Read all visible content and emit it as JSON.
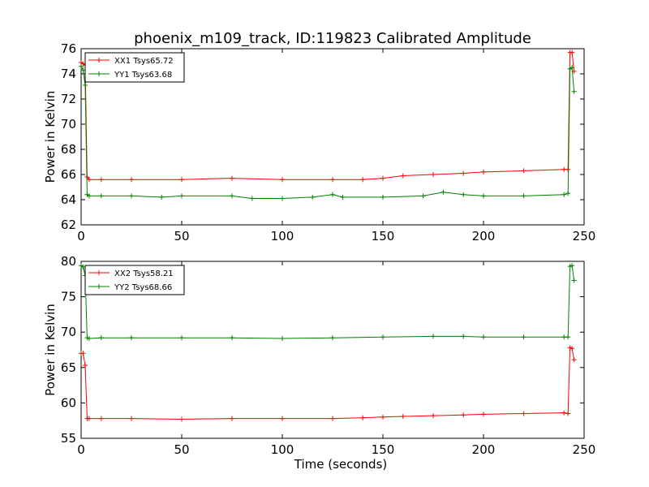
{
  "title": "phoenix_m109_track, ID:119823 Calibrated Amplitude",
  "colors": {
    "red": "#ff0000",
    "green": "#008000"
  },
  "chart_data": [
    {
      "type": "line",
      "xlabel": "",
      "ylabel": "Power in Kelvin",
      "xlim": [
        0,
        250
      ],
      "ylim": [
        62,
        76
      ],
      "xticks": [
        0,
        50,
        100,
        150,
        200,
        250
      ],
      "yticks": [
        62,
        64,
        66,
        68,
        70,
        72,
        74,
        76
      ],
      "legend_position": "top-left",
      "series": [
        {
          "name": "XX1 Tsys65.72",
          "color": "#ff0000",
          "x": [
            0,
            1,
            2,
            3,
            4,
            10,
            25,
            50,
            75,
            100,
            125,
            140,
            150,
            160,
            175,
            190,
            200,
            220,
            240,
            242,
            243,
            244,
            245
          ],
          "y": [
            74.9,
            74.8,
            74.7,
            65.8,
            65.6,
            65.6,
            65.6,
            65.6,
            65.7,
            65.6,
            65.6,
            65.6,
            65.7,
            65.9,
            66.0,
            66.1,
            66.2,
            66.3,
            66.4,
            66.4,
            75.7,
            75.7,
            74.2
          ]
        },
        {
          "name": "YY1 Tsys63.68",
          "color": "#008000",
          "x": [
            0,
            1,
            2,
            3,
            4,
            10,
            25,
            40,
            50,
            75,
            85,
            100,
            115,
            125,
            130,
            150,
            170,
            180,
            190,
            200,
            220,
            240,
            242,
            243,
            244,
            245
          ],
          "y": [
            74.6,
            74.3,
            73.1,
            64.4,
            64.3,
            64.3,
            64.3,
            64.2,
            64.3,
            64.3,
            64.1,
            64.1,
            64.2,
            64.4,
            64.2,
            64.2,
            64.3,
            64.6,
            64.4,
            64.3,
            64.3,
            64.4,
            64.5,
            74.4,
            74.5,
            72.6
          ]
        }
      ]
    },
    {
      "type": "line",
      "xlabel": "Time (seconds)",
      "ylabel": "Power in Kelvin",
      "xlim": [
        0,
        250
      ],
      "ylim": [
        55,
        80
      ],
      "xticks": [
        0,
        50,
        100,
        150,
        200,
        250
      ],
      "yticks": [
        55,
        60,
        65,
        70,
        75,
        80
      ],
      "legend_position": "top-left",
      "series": [
        {
          "name": "XX2 Tsys58.21",
          "color": "#ff0000",
          "x": [
            0,
            1,
            2,
            3,
            4,
            10,
            25,
            50,
            75,
            100,
            125,
            140,
            150,
            160,
            175,
            190,
            200,
            220,
            240,
            242,
            243,
            244,
            245
          ],
          "y": [
            67.0,
            67.0,
            65.3,
            57.8,
            57.8,
            57.8,
            57.8,
            57.7,
            57.8,
            57.8,
            57.8,
            57.9,
            58.0,
            58.1,
            58.2,
            58.3,
            58.4,
            58.5,
            58.6,
            58.5,
            67.8,
            67.7,
            66.1
          ]
        },
        {
          "name": "YY2 Tsys68.66",
          "color": "#008000",
          "x": [
            0,
            1,
            2,
            3,
            4,
            10,
            25,
            50,
            75,
            100,
            125,
            150,
            175,
            190,
            200,
            220,
            240,
            242,
            243,
            244,
            245
          ],
          "y": [
            79.4,
            79.2,
            78.0,
            69.2,
            69.1,
            69.2,
            69.2,
            69.2,
            69.2,
            69.1,
            69.2,
            69.3,
            69.4,
            69.4,
            69.3,
            69.3,
            69.3,
            69.3,
            79.3,
            79.4,
            77.3
          ]
        }
      ]
    }
  ]
}
